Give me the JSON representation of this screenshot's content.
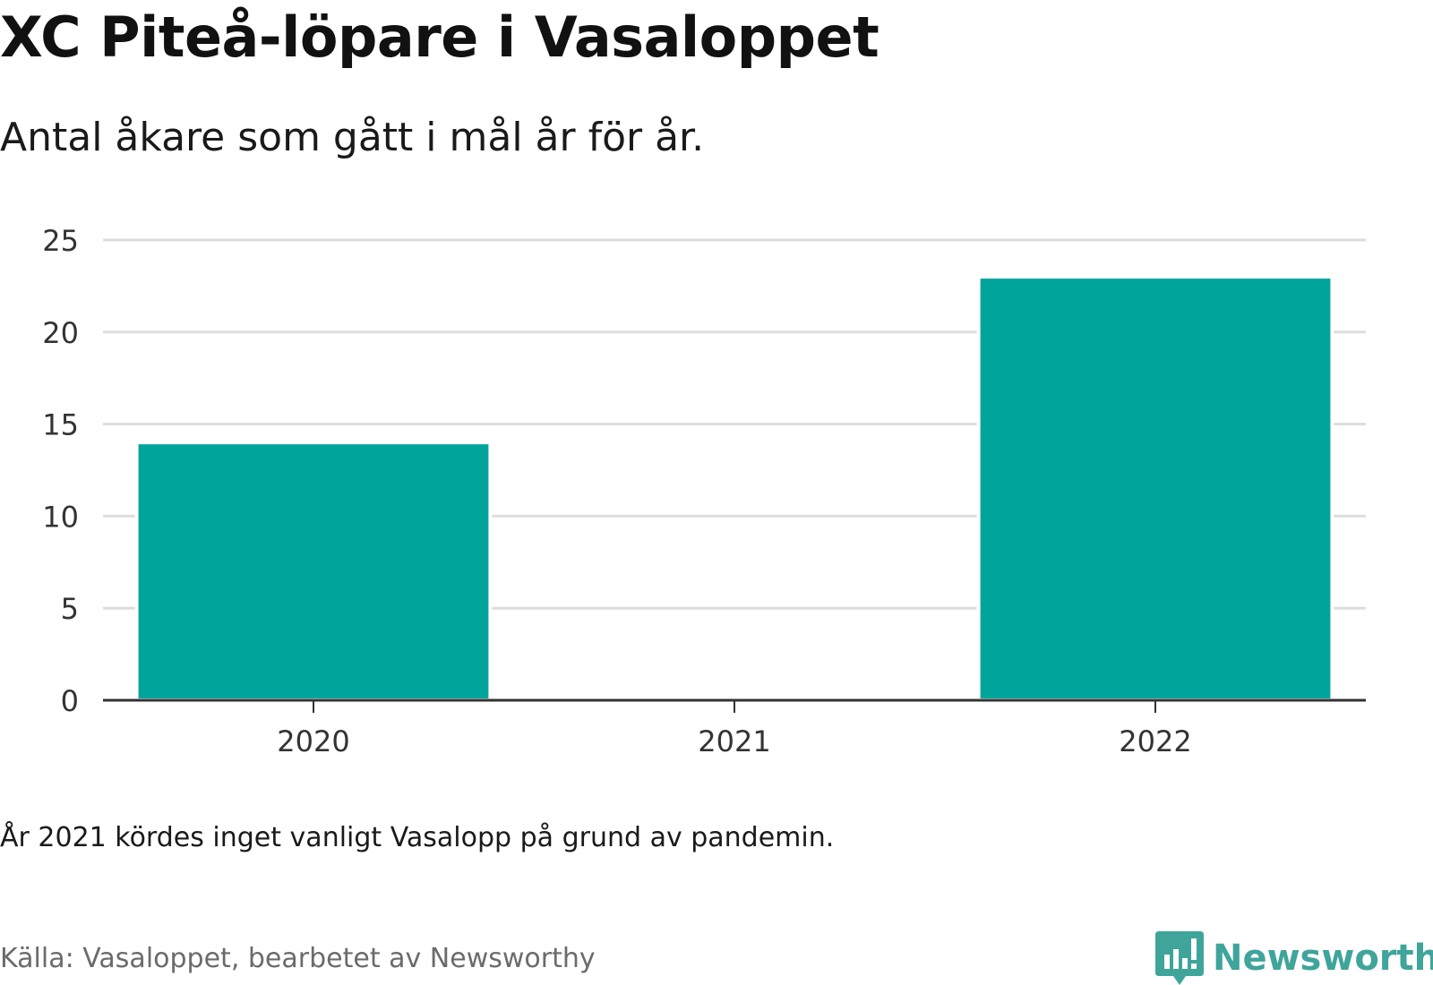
{
  "title": "XC Piteå-löpare i Vasaloppet",
  "subtitle": "Antal åkare som gått i mål år för år.",
  "note": "År 2021 kördes inget vanligt Vasalopp på grund av pandemin.",
  "source": "Källa: Vasaloppet, bearbetet av Newsworthy",
  "logo": {
    "text": "Newsworthy",
    "icon": "newsworthy-logo-icon"
  },
  "colors": {
    "bar": "#00a49a",
    "grid": "#dddddd",
    "axis": "#333333",
    "logo": "#3fa59b"
  },
  "chart_data": {
    "type": "bar",
    "title": "XC Piteå-löpare i Vasaloppet",
    "subtitle": "Antal åkare som gått i mål år för år.",
    "categories": [
      "2020",
      "2021",
      "2022"
    ],
    "values": [
      14,
      0,
      23
    ],
    "ylim": [
      0,
      25
    ],
    "yticks": [
      0,
      5,
      10,
      15,
      20,
      25
    ],
    "xlabel": "",
    "ylabel": "",
    "grid": true,
    "legend": "none"
  }
}
